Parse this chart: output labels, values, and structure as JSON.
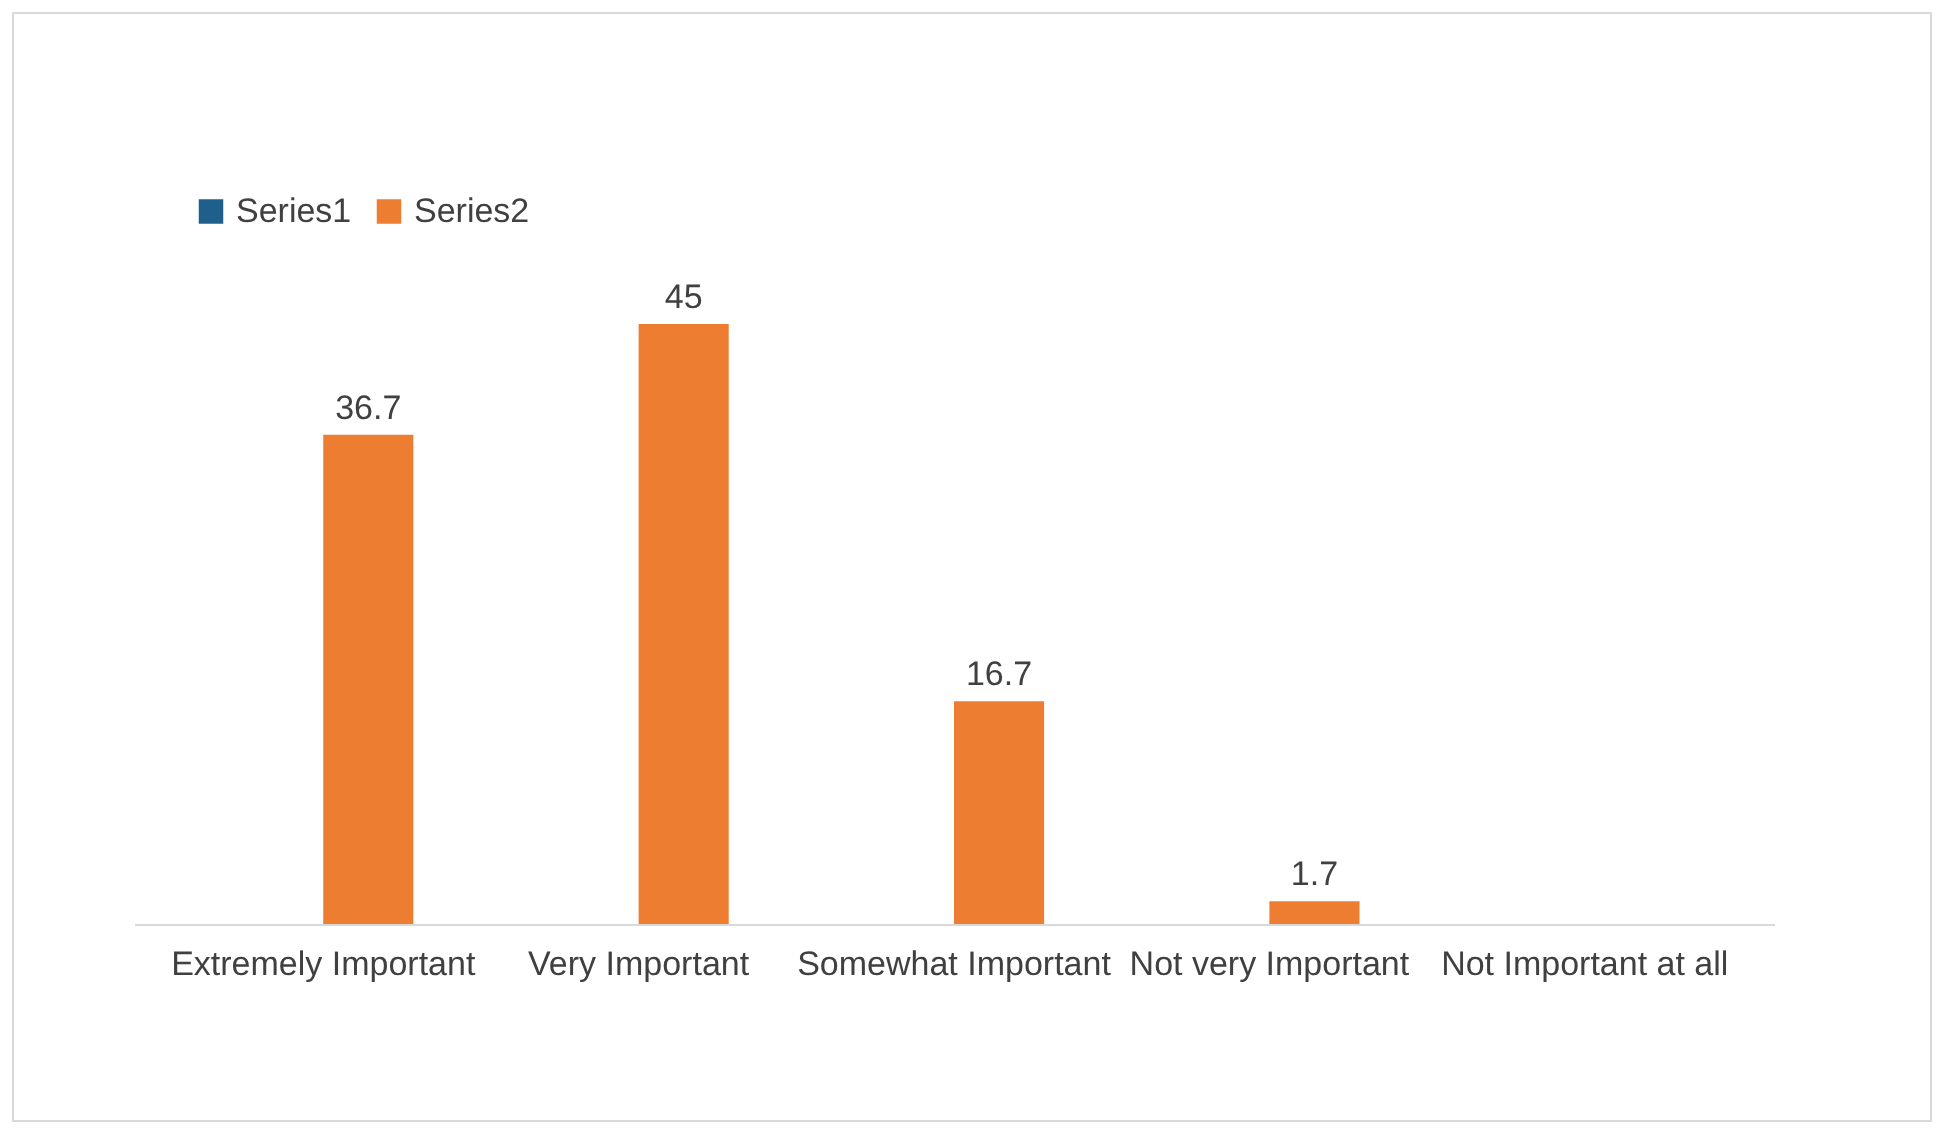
{
  "chart_data": {
    "type": "bar",
    "categories": [
      "Extremely Important",
      "Very Important",
      "Somewhat Important",
      "Not very Important",
      "Not Important at all"
    ],
    "series": [
      {
        "name": "Series1",
        "color": "#1f5f8b",
        "values": [
          null,
          null,
          null,
          null,
          null
        ]
      },
      {
        "name": "Series2",
        "color": "#ed7d31",
        "values": [
          36.7,
          45,
          16.7,
          1.7,
          null
        ]
      }
    ],
    "data_labels": true,
    "legend": "top"
  }
}
